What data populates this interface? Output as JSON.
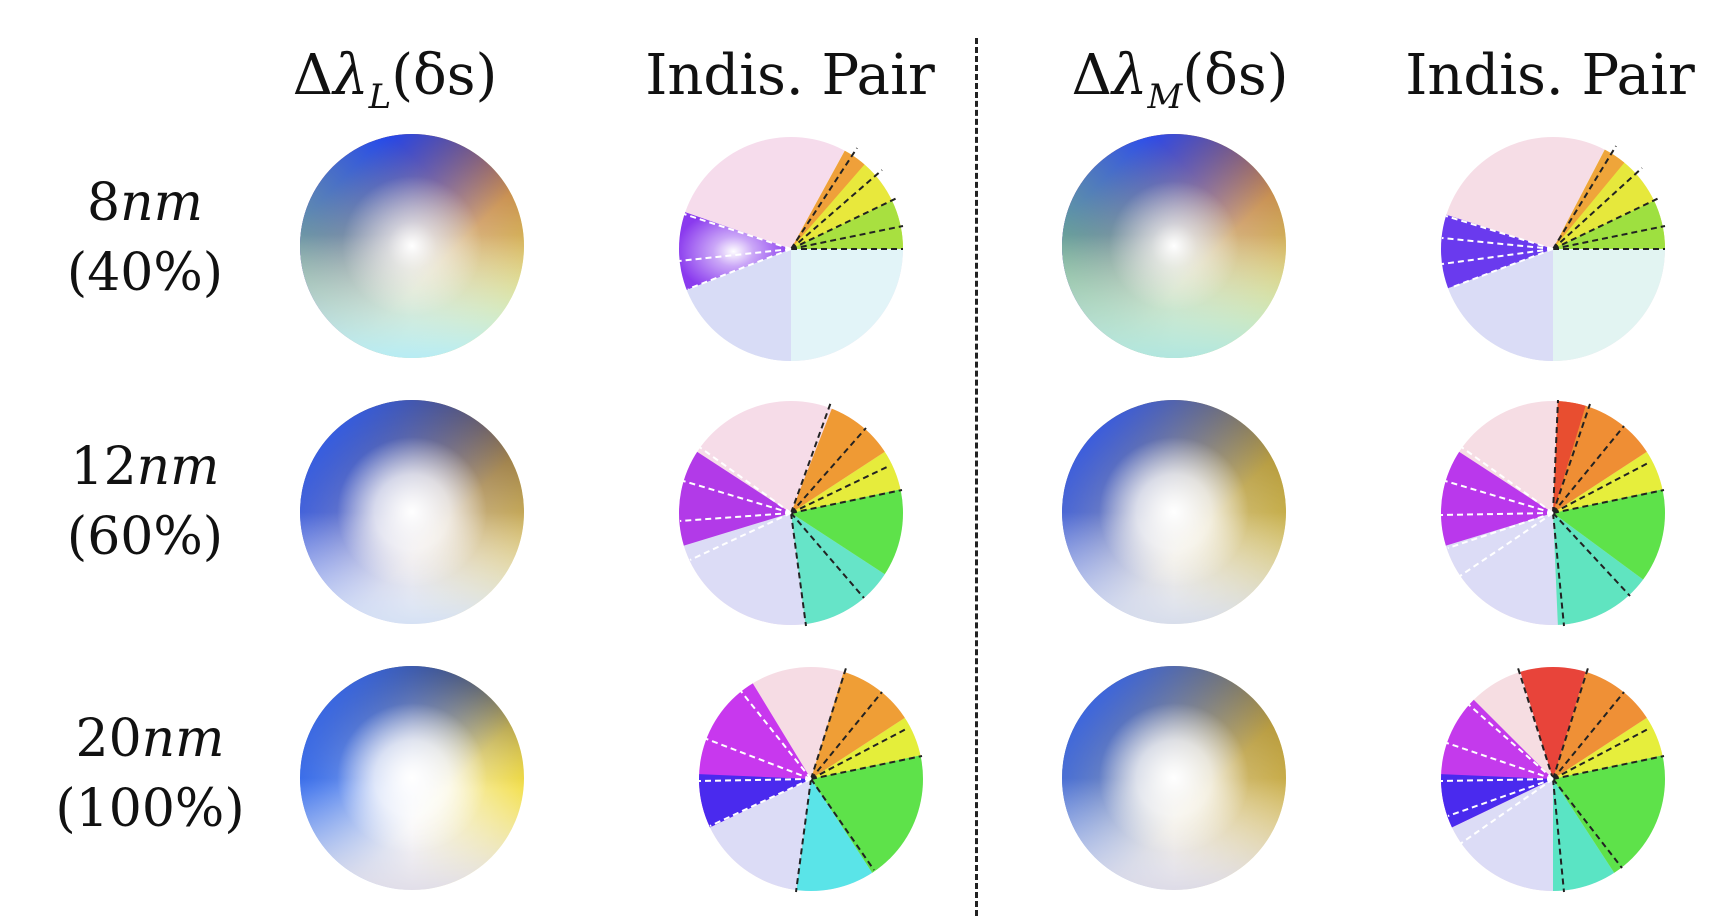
{
  "headers": {
    "col1": {
      "delta": "Δ",
      "lambda": "λ",
      "sub": "L",
      "arg": "(δs)"
    },
    "col2": "Indis. Pair",
    "col3": {
      "delta": "Δ",
      "lambda": "λ",
      "sub": "M",
      "arg": "(δs)"
    },
    "col4": "Indis. Pair"
  },
  "rows": [
    {
      "nm_value": "8",
      "nm_unit": "nm",
      "percent": "(40%)"
    },
    {
      "nm_value": "12",
      "nm_unit": "nm",
      "percent": "(60%)"
    },
    {
      "nm_value": "20",
      "nm_unit": "nm",
      "percent": "(100%)"
    }
  ],
  "colors": {
    "top_brown": "#b85a1e",
    "purple": "#9a40f0",
    "blue": "#1e46f0",
    "cyan": "#c8f4ff",
    "yellow": "#e6ef2c",
    "yellow_green": "#cde85a",
    "magenta": "#e43ae8",
    "orange": "#ee8a2a",
    "green": "#54e24c",
    "pink": "#f7d6df",
    "red": "#e84030"
  }
}
